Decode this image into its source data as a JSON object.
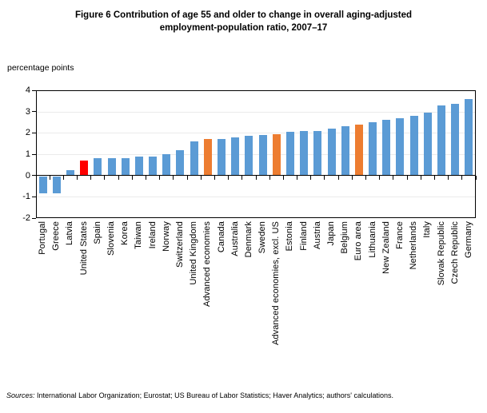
{
  "title": {
    "line1": "Figure 6 Contribution of age 55 and older to change in overall aging-adjusted",
    "line2": "employment-population ratio, 2007–17"
  },
  "units_label": "percentage points",
  "footer": {
    "sources_label": "Sources:",
    "sources_text": " International Labor Organization; Eurostat; US Bureau of Labor Statistics; Haver Analytics; authors' calculations."
  },
  "colors": {
    "bar_default": "#5B9BD5",
    "bar_united_states": "#FF0000",
    "bar_aggregates": "#ED7D31",
    "gridline": "#EBEBEB",
    "axis": "#000000"
  },
  "chart_data": {
    "type": "bar",
    "title": "Figure 6 Contribution of age 55 and older to change in overall aging-adjusted employment-population ratio, 2007–17",
    "ylabel": "percentage points",
    "xlabel": "",
    "ylim": [
      -2,
      4
    ],
    "yticks": [
      4,
      3,
      2,
      1,
      0,
      -1,
      -2
    ],
    "grid": "horizontal light-gray gridlines at integers; plot area fully framed; ticks below zero axis",
    "legend_position": "none",
    "categories": [
      "Portugal",
      "Greece",
      "Latvia",
      "United States",
      "Spain",
      "Slovenia",
      "Korea",
      "Taiwan",
      "Ireland",
      "Norway",
      "Switzerland",
      "United Kingdom",
      "Advanced economies",
      "Canada",
      "Australia",
      "Denmark",
      "Sweden",
      "Advanced economies, excl. US",
      "Estonia",
      "Finland",
      "Austria",
      "Japan",
      "Belgium",
      "Euro area",
      "Lithuania",
      "New Zealand",
      "France",
      "Netherlands",
      "Italy",
      "Slovak Republic",
      "Czech Republic",
      "Germany"
    ],
    "values": [
      -0.8,
      -0.8,
      0.25,
      0.7,
      0.8,
      0.8,
      0.8,
      0.9,
      0.9,
      1.0,
      1.2,
      1.6,
      1.7,
      1.7,
      1.8,
      1.85,
      1.9,
      1.95,
      2.05,
      2.1,
      2.1,
      2.2,
      2.3,
      2.4,
      2.5,
      2.6,
      2.7,
      2.8,
      2.95,
      3.3,
      3.35,
      3.6
    ],
    "bar_color_keys": [
      "default",
      "default",
      "default",
      "united_states",
      "default",
      "default",
      "default",
      "default",
      "default",
      "default",
      "default",
      "default",
      "aggregate",
      "default",
      "default",
      "default",
      "default",
      "aggregate",
      "default",
      "default",
      "default",
      "default",
      "default",
      "aggregate",
      "default",
      "default",
      "default",
      "default",
      "default",
      "default",
      "default",
      "default"
    ]
  }
}
